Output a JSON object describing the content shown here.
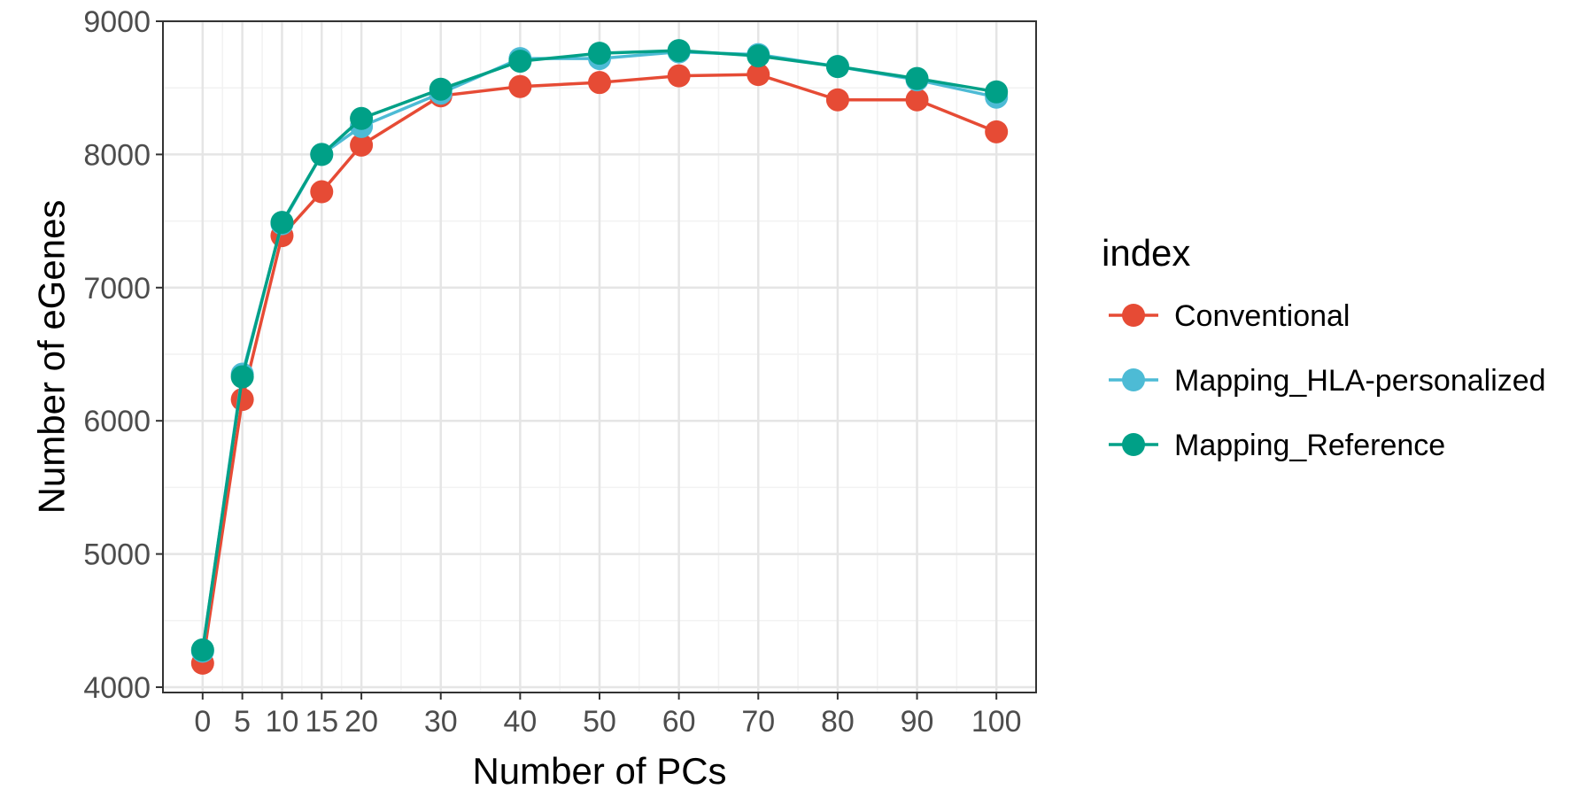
{
  "chart_data": {
    "type": "line",
    "title": "",
    "xlabel": "Number of PCs",
    "ylabel": "Number of eGenes",
    "x": [
      0,
      5,
      10,
      15,
      20,
      30,
      40,
      50,
      60,
      70,
      80,
      90,
      100
    ],
    "xticks": [
      0,
      5,
      10,
      15,
      20,
      30,
      40,
      50,
      60,
      70,
      80,
      90,
      100
    ],
    "xtick_labels": [
      "0",
      "5",
      "10",
      "15",
      "20",
      "30",
      "40",
      "50",
      "60",
      "70",
      "80",
      "90",
      "100"
    ],
    "yticks": [
      4000,
      5000,
      6000,
      7000,
      8000,
      9000
    ],
    "ytick_labels": [
      "4000",
      "5000",
      "6000",
      "7000",
      "8000",
      "9000"
    ],
    "xlim": [
      -5,
      105
    ],
    "ylim": [
      3960,
      9000
    ],
    "grid": true,
    "legend_title": "index",
    "legend_position": "right",
    "series": [
      {
        "name": "Conventional",
        "color": "#E64B35",
        "values": [
          4180,
          6160,
          7390,
          7720,
          8070,
          8440,
          8510,
          8540,
          8590,
          8600,
          8410,
          8410,
          8170
        ]
      },
      {
        "name": "Mapping_HLA-personalized",
        "color": "#4DBBD5",
        "values": [
          4270,
          6350,
          7480,
          8000,
          8210,
          8460,
          8720,
          8720,
          8770,
          8750,
          8660,
          8560,
          8430
        ]
      },
      {
        "name": "Mapping_Reference",
        "color": "#00A087",
        "values": [
          4280,
          6330,
          7490,
          8000,
          8270,
          8490,
          8700,
          8760,
          8780,
          8740,
          8660,
          8570,
          8470
        ]
      }
    ]
  }
}
